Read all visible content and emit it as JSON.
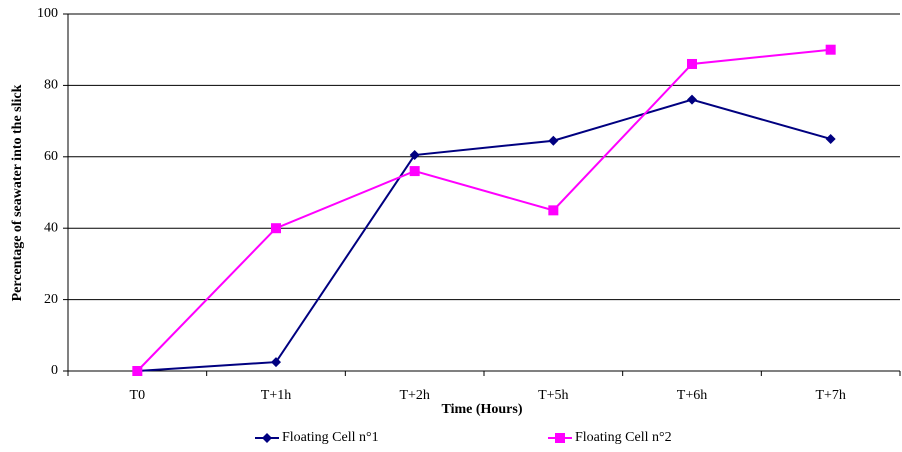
{
  "chart_data": {
    "type": "line",
    "x_label": "Time (Hours)",
    "y_label": "Percentage of seawater into the slick",
    "categories": [
      "T0",
      "T+1h",
      "T+2h",
      "T+5h",
      "T+6h",
      "T+7h"
    ],
    "series": [
      {
        "name": "Floating Cell n°1",
        "color": "#000080",
        "marker": "diamond",
        "values": [
          0,
          2.5,
          60.5,
          64.5,
          76,
          65
        ]
      },
      {
        "name": "Floating Cell n°2",
        "color": "#ff00ff",
        "marker": "square",
        "values": [
          0,
          40,
          56,
          45,
          86,
          90
        ]
      }
    ],
    "ylim": [
      0,
      100
    ],
    "yticks": [
      0,
      20,
      40,
      60,
      80,
      100
    ],
    "grid": true,
    "legend": "bottom"
  }
}
